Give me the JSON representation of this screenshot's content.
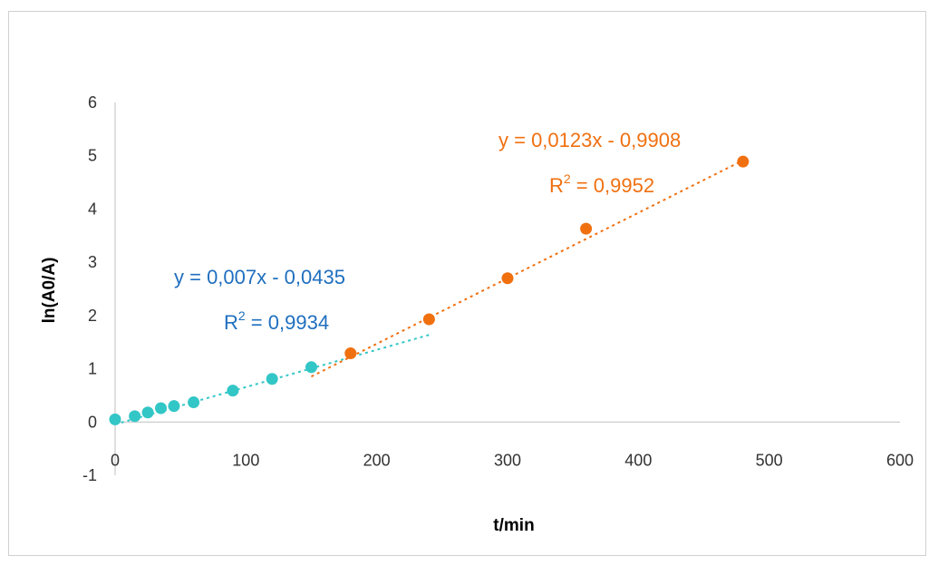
{
  "chart_data": {
    "type": "scatter",
    "title": "",
    "xlabel": "t/min",
    "ylabel": "ln(A0/A)",
    "xlim": [
      0,
      600
    ],
    "ylim": [
      -1,
      6
    ],
    "x_ticks": [
      "0",
      "100",
      "200",
      "300",
      "400",
      "500",
      "600"
    ],
    "y_ticks": [
      "-1",
      "0",
      "1",
      "2",
      "3",
      "4",
      "5",
      "6"
    ],
    "grid": false,
    "legend": "none",
    "series": [
      {
        "color": "#33c6c6",
        "x": [
          0,
          15,
          25,
          35,
          45,
          60,
          90,
          120,
          150
        ],
        "y": [
          0.05,
          0.11,
          0.18,
          0.26,
          0.3,
          0.37,
          0.59,
          0.81,
          1.03
        ],
        "trendline": {
          "x_range": [
            0,
            240
          ],
          "slope": 0.007,
          "intercept": -0.0435,
          "equation": "y = 0,007x - 0,0435",
          "r2_label": "R",
          "r2_exp": "2",
          "r2_value": " = 0,9934",
          "label_color": "#1f6fbf"
        }
      },
      {
        "color": "#f07010",
        "x": [
          180,
          240,
          300,
          360,
          480
        ],
        "y": [
          1.29,
          1.93,
          2.7,
          3.63,
          4.89
        ],
        "trendline": {
          "x_range": [
            150,
            480
          ],
          "slope": 0.0123,
          "intercept": -0.9908,
          "equation": "y = 0,0123x - 0,9908",
          "r2_label": "R",
          "r2_exp": "2",
          "r2_value": " = 0,9952",
          "label_color": "#f07010"
        }
      }
    ]
  }
}
